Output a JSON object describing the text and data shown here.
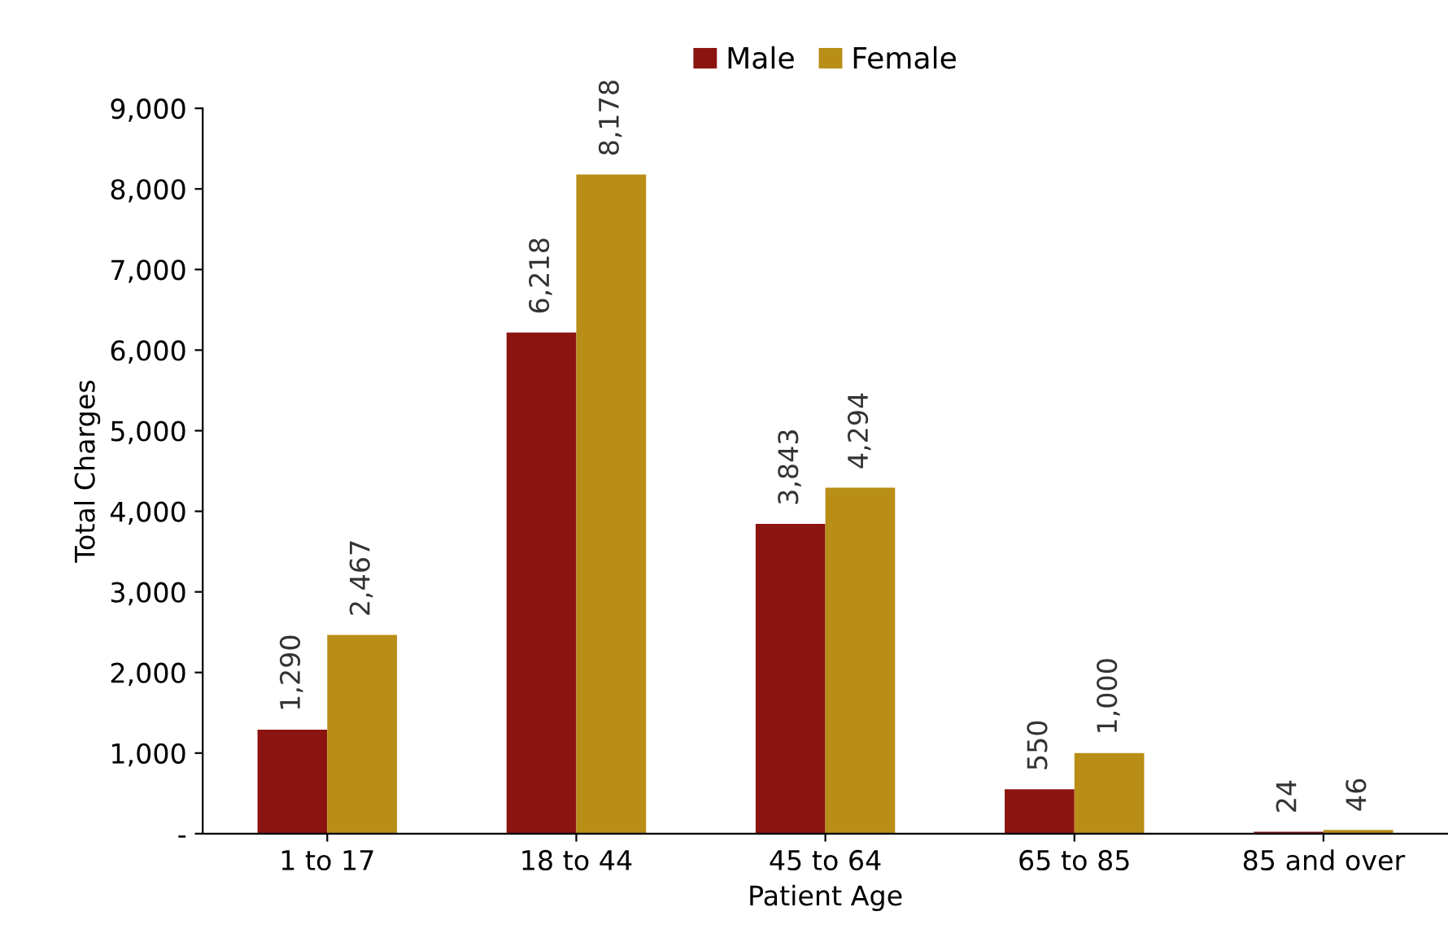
{
  "chart_data": {
    "type": "bar",
    "xlabel": "Patient Age",
    "ylabel": "Total Charges",
    "categories": [
      "1 to 17",
      "18 to 44",
      "45 to 64",
      "65 to 85",
      "85 and over"
    ],
    "series": [
      {
        "name": "Male",
        "color": "#8b1410",
        "values": [
          1290,
          6218,
          3843,
          550,
          24
        ],
        "value_labels": [
          "1,290",
          "6,218",
          "3,843",
          "550",
          "24"
        ]
      },
      {
        "name": "Female",
        "color": "#b88e17",
        "values": [
          2467,
          8178,
          4294,
          1000,
          46
        ],
        "value_labels": [
          "2,467",
          "8,178",
          "4,294",
          "1,000",
          "46"
        ]
      }
    ],
    "ylim": [
      0,
      9000
    ],
    "yticks": [
      {
        "value": 0,
        "label": "-"
      },
      {
        "value": 1000,
        "label": "1,000"
      },
      {
        "value": 2000,
        "label": "2,000"
      },
      {
        "value": 3000,
        "label": "3,000"
      },
      {
        "value": 4000,
        "label": "4,000"
      },
      {
        "value": 5000,
        "label": "5,000"
      },
      {
        "value": 6000,
        "label": "6,000"
      },
      {
        "value": 7000,
        "label": "7,000"
      },
      {
        "value": 8000,
        "label": "8,000"
      },
      {
        "value": 9000,
        "label": "9,000"
      }
    ],
    "grid": false,
    "legend": "top"
  }
}
